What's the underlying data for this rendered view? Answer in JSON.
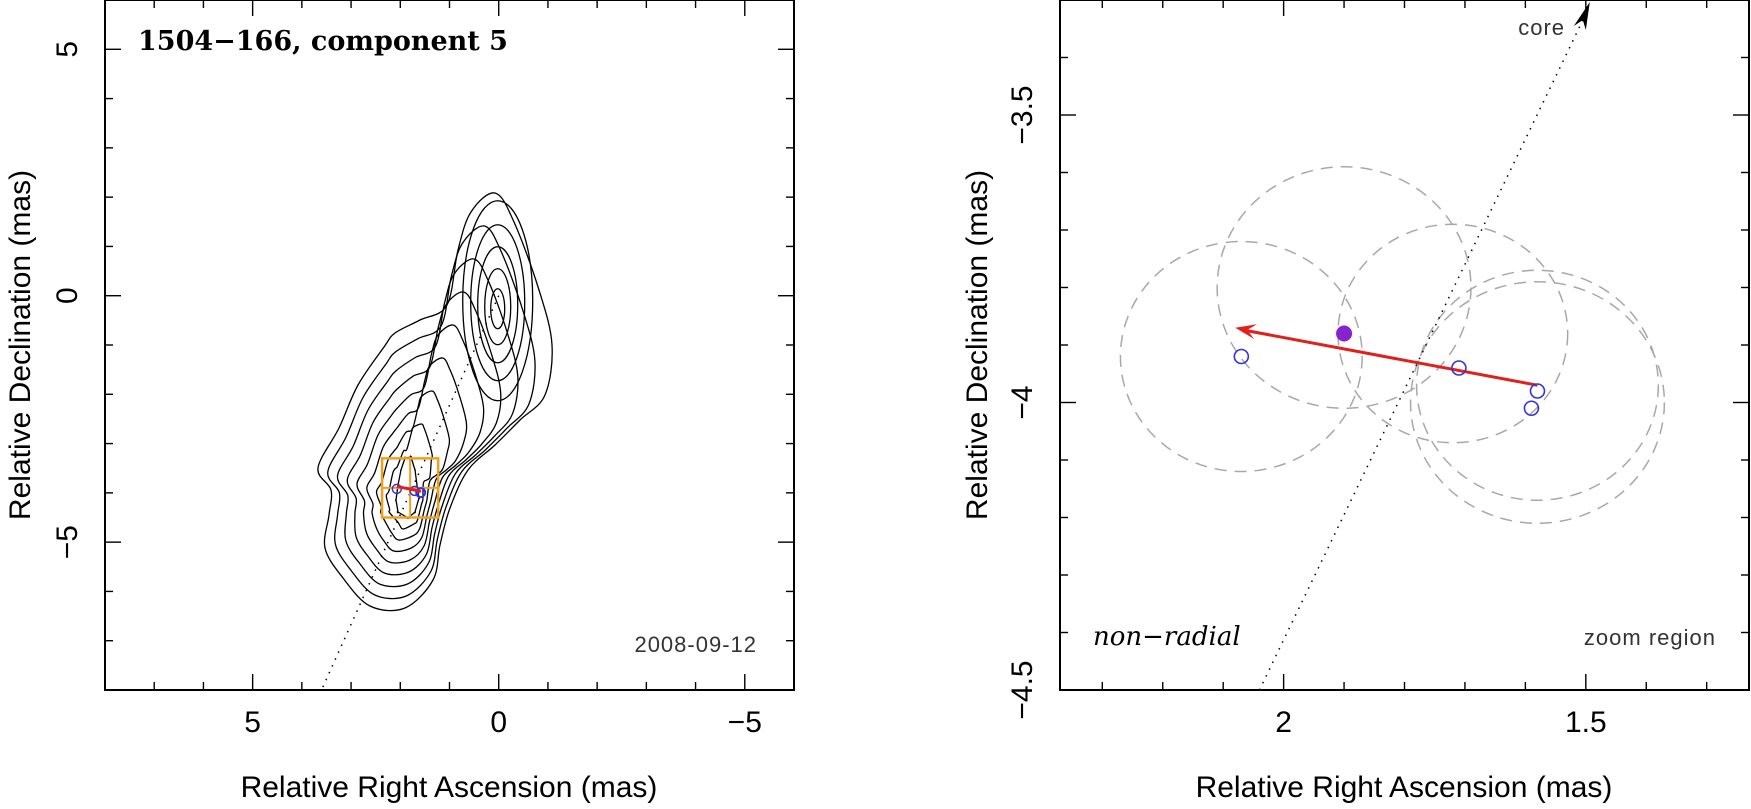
{
  "chart_data": [
    {
      "type": "scatter",
      "panel": "left",
      "title": "1504−166, component 5",
      "epoch": "2008-09-12",
      "xlabel": "Relative Right Ascension (mas)",
      "ylabel": "Relative Declination (mas)",
      "xlim": [
        8,
        -6
      ],
      "ylim": [
        -8,
        6
      ],
      "x_ticks": [
        5,
        0,
        -5
      ],
      "x_tick_labels": [
        "5",
        "0",
        "−5"
      ],
      "y_ticks": [
        -5,
        0,
        5
      ],
      "y_tick_labels": [
        "−5",
        "0",
        "5"
      ],
      "core_position": [
        0,
        0
      ],
      "zoom_box": {
        "x": [
          2.37,
          1.23
        ],
        "y": [
          -4.5,
          -3.3
        ]
      },
      "component_points": [
        [
          2.07,
          -3.92
        ],
        [
          1.71,
          -3.96
        ],
        [
          1.58,
          -3.99
        ],
        [
          1.59,
          -4.0
        ]
      ],
      "motion_vector": {
        "from": [
          1.58,
          -3.97
        ],
        "to": [
          2.07,
          -3.87
        ]
      },
      "contour_levels": 9
    },
    {
      "type": "scatter",
      "panel": "right",
      "subtitle": "zoom region",
      "annotation": "non−radial",
      "core_label": "core",
      "xlabel": "Relative Right Ascension (mas)",
      "ylabel": "Relative Declination (mas)",
      "xlim": [
        2.37,
        1.23
      ],
      "ylim": [
        -4.5,
        -3.3
      ],
      "x_ticks": [
        2,
        1.5
      ],
      "x_tick_labels": [
        "2",
        "1.5"
      ],
      "y_ticks": [
        -4.5,
        -4,
        -3.5
      ],
      "y_tick_labels": [
        "−4.5",
        "−4",
        "−3.5"
      ],
      "component_points": [
        {
          "x": 2.07,
          "y": -3.92
        },
        {
          "x": 1.71,
          "y": -3.94
        },
        {
          "x": 1.58,
          "y": -3.98
        },
        {
          "x": 1.59,
          "y": -4.01
        }
      ],
      "mean_position": {
        "x": 1.9,
        "y": -3.88
      },
      "motion_vector": {
        "from": [
          1.58,
          -3.97
        ],
        "to": [
          2.08,
          -3.87
        ]
      },
      "dashed_circles": [
        {
          "x": 2.07,
          "y": -3.92,
          "r": 0.2
        },
        {
          "x": 1.9,
          "y": -3.8,
          "r": 0.21
        },
        {
          "x": 1.72,
          "y": -3.88,
          "r": 0.19
        },
        {
          "x": 1.58,
          "y": -3.97,
          "r": 0.2
        },
        {
          "x": 1.58,
          "y": -4.0,
          "r": 0.21
        }
      ],
      "ridge_line": {
        "from": [
          1.5,
          -3.3
        ],
        "to": [
          2.04,
          -4.5
        ]
      }
    }
  ],
  "colors": {
    "motion_vector": "#e0201b",
    "component_marker": "#3333dd",
    "mean_marker": "#8822cc",
    "zoom_box": "#f0a020"
  }
}
